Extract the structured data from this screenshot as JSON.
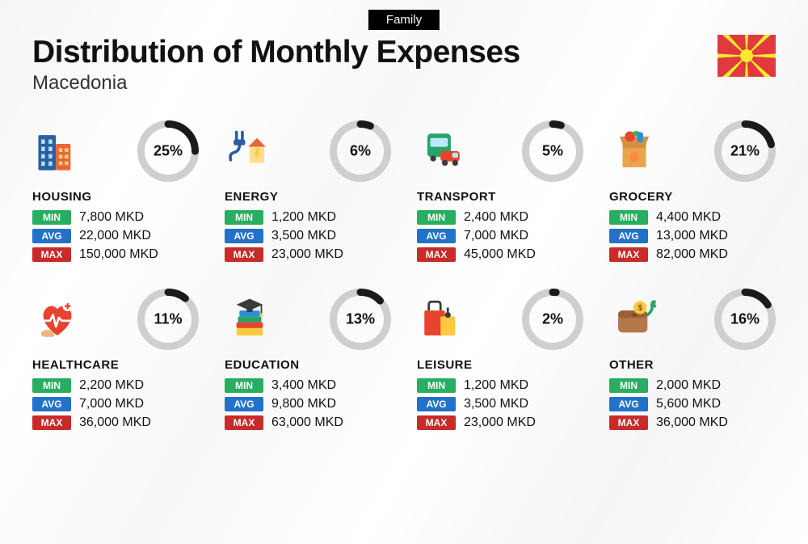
{
  "badge": "Family",
  "title": "Distribution of Monthly Expenses",
  "subtitle": "Macedonia",
  "currency": "MKD",
  "labels": {
    "min": "MIN",
    "avg": "AVG",
    "max": "MAX"
  },
  "colors": {
    "badge_min": "#27ae60",
    "badge_avg": "#2471c9",
    "badge_max": "#c92a2a",
    "donut_fg": "#1a1a1a",
    "donut_bg": "#cfcfcf",
    "text": "#111111",
    "background": "#f6f6f6"
  },
  "donut": {
    "size": 76,
    "stroke_width": 9
  },
  "flag": {
    "bg": "#e03a3e",
    "sun": "#f8e92e"
  },
  "categories": [
    {
      "key": "housing",
      "name": "HOUSING",
      "pct": 25,
      "min": "7,800",
      "avg": "22,000",
      "max": "150,000",
      "icon": "buildings"
    },
    {
      "key": "energy",
      "name": "ENERGY",
      "pct": 6,
      "min": "1,200",
      "avg": "3,500",
      "max": "23,000",
      "icon": "energy"
    },
    {
      "key": "transport",
      "name": "TRANSPORT",
      "pct": 5,
      "min": "2,400",
      "avg": "7,000",
      "max": "45,000",
      "icon": "transport"
    },
    {
      "key": "grocery",
      "name": "GROCERY",
      "pct": 21,
      "min": "4,400",
      "avg": "13,000",
      "max": "82,000",
      "icon": "grocery"
    },
    {
      "key": "healthcare",
      "name": "HEALTHCARE",
      "pct": 11,
      "min": "2,200",
      "avg": "7,000",
      "max": "36,000",
      "icon": "healthcare"
    },
    {
      "key": "education",
      "name": "EDUCATION",
      "pct": 13,
      "min": "3,400",
      "avg": "9,800",
      "max": "63,000",
      "icon": "education"
    },
    {
      "key": "leisure",
      "name": "LEISURE",
      "pct": 2,
      "min": "1,200",
      "avg": "3,500",
      "max": "23,000",
      "icon": "leisure"
    },
    {
      "key": "other",
      "name": "OTHER",
      "pct": 16,
      "min": "2,000",
      "avg": "5,600",
      "max": "36,000",
      "icon": "other"
    }
  ]
}
